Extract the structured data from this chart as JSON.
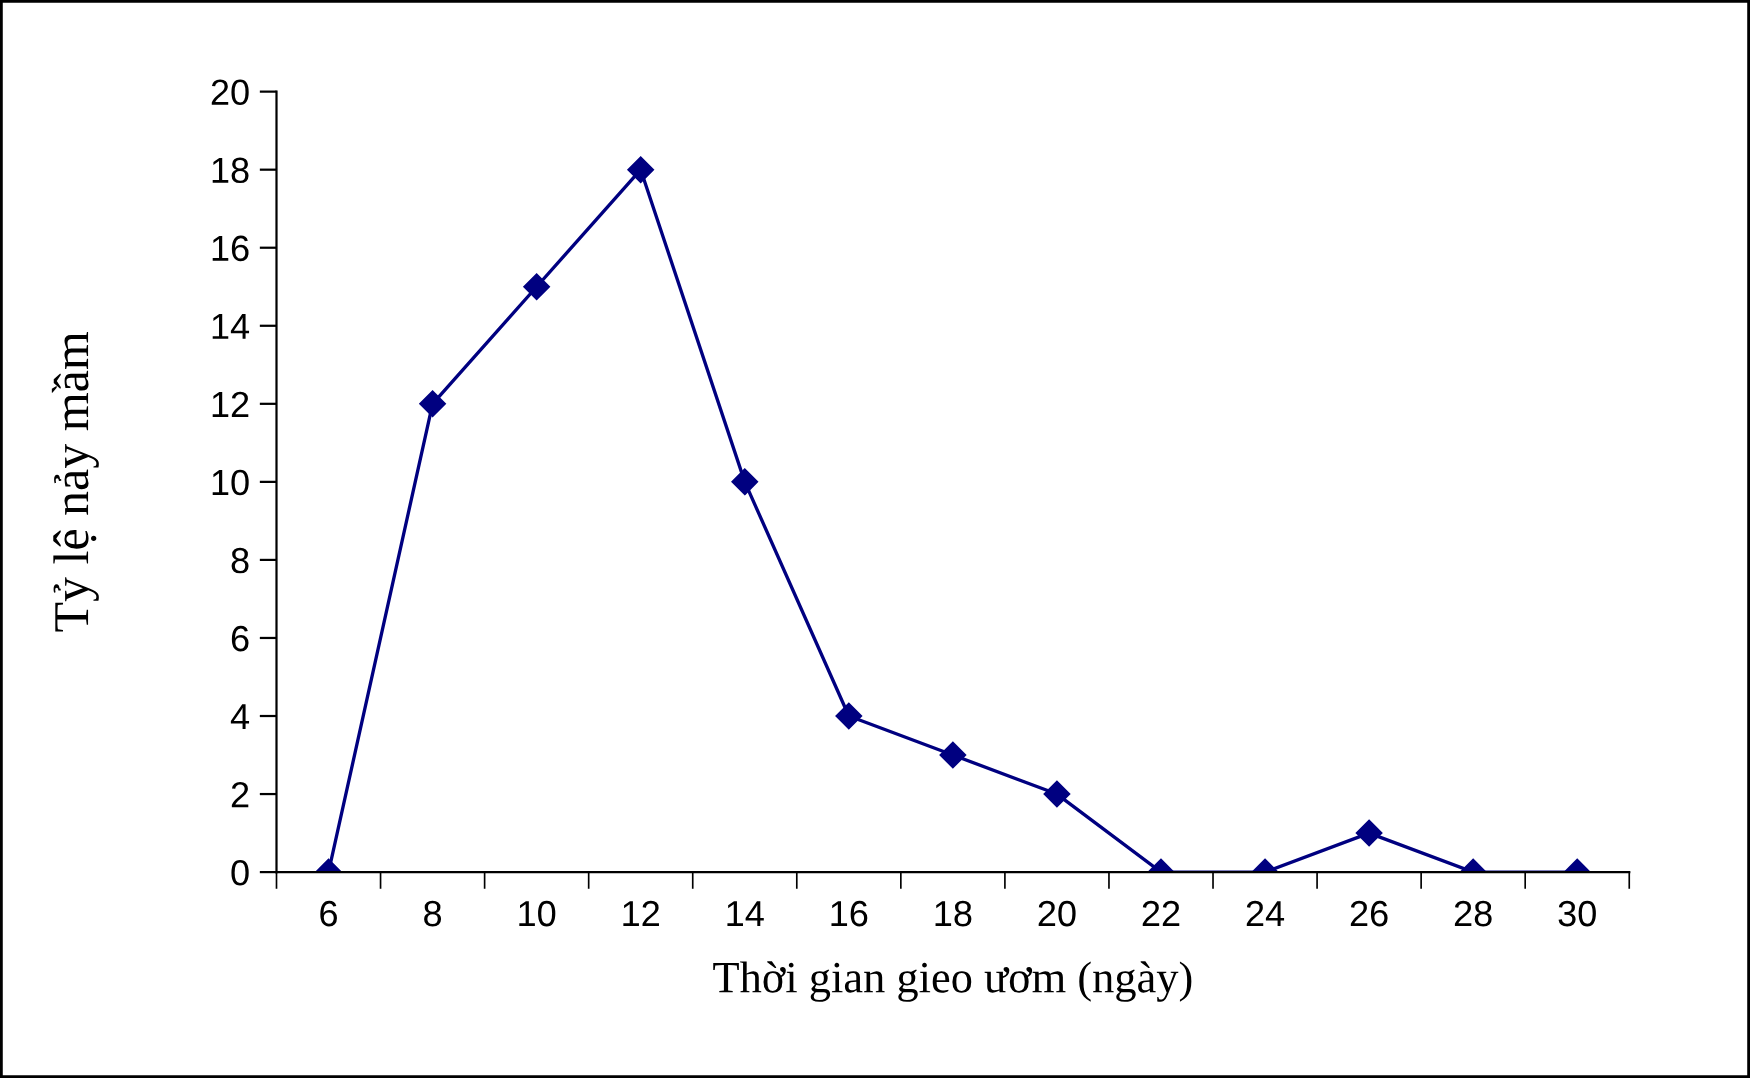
{
  "chart_data": {
    "type": "line",
    "categories": [
      "6",
      "8",
      "10",
      "12",
      "14",
      "16",
      "18",
      "20",
      "22",
      "24",
      "26",
      "28",
      "30"
    ],
    "series": [
      {
        "color": "#000080",
        "values": [
          0,
          12,
          15,
          18,
          10,
          4,
          3,
          2,
          0,
          0,
          1,
          0,
          0
        ]
      }
    ],
    "xlabel": "Thời gian gieo ươm (ngày)",
    "ylabel": "Tỷ lệ nảy mầm",
    "ylim": [
      0,
      20
    ],
    "yticks": [
      0,
      2,
      4,
      6,
      8,
      10,
      12,
      14,
      16,
      18,
      20
    ],
    "marker": "diamond",
    "line_style": "solid",
    "grid": false,
    "legend": false
  }
}
